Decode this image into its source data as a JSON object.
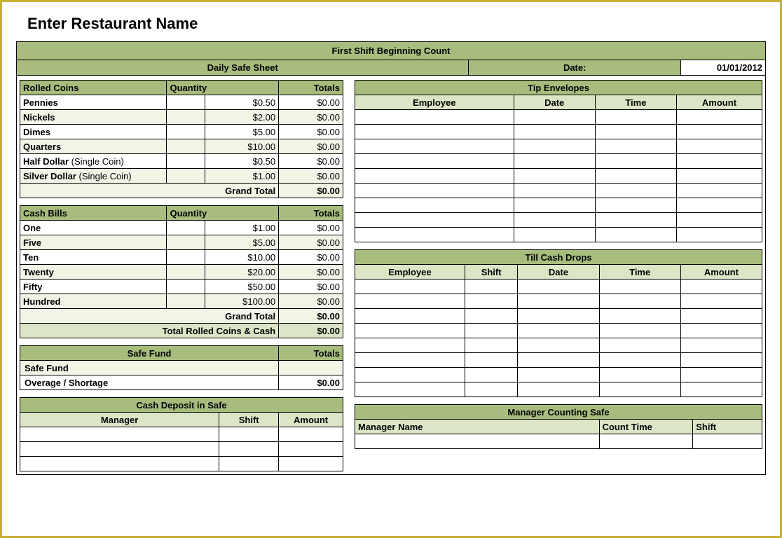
{
  "colors": {
    "header_dark": "#a8bd7d",
    "header_light": "#dce6c7",
    "row_alt": "#f0f5e6",
    "border_frame": "#c9b037",
    "border_cell": "#000000",
    "background": "#ffffff"
  },
  "typography": {
    "title_fontsize": 22,
    "cell_fontsize": 13,
    "font_family": "Arial"
  },
  "title": "Enter Restaurant Name",
  "main_header": "First Shift Beginning Count",
  "subheader_left": "Daily Safe Sheet",
  "subheader_date_label": "Date:",
  "subheader_date_value": "01/01/2012",
  "rolled_coins": {
    "title": "Rolled Coins",
    "col_qty": "Quantity",
    "col_totals": "Totals",
    "rows": [
      {
        "label": "Pennies",
        "sub": "",
        "qty": "",
        "unit": "$0.50",
        "total": "$0.00"
      },
      {
        "label": "Nickels",
        "sub": "",
        "qty": "",
        "unit": "$2.00",
        "total": "$0.00"
      },
      {
        "label": "Dimes",
        "sub": "",
        "qty": "",
        "unit": "$5.00",
        "total": "$0.00"
      },
      {
        "label": "Quarters",
        "sub": "",
        "qty": "",
        "unit": "$10.00",
        "total": "$0.00"
      },
      {
        "label": "Half Dollar",
        "sub": " (Single Coin)",
        "qty": "",
        "unit": "$0.50",
        "total": "$0.00"
      },
      {
        "label": "Silver Dollar",
        "sub": " (Single Coin)",
        "qty": "",
        "unit": "$1.00",
        "total": "$0.00"
      }
    ],
    "grand_total_label": "Grand Total",
    "grand_total_value": "$0.00"
  },
  "cash_bills": {
    "title": "Cash Bills",
    "col_qty": "Quantity",
    "col_totals": "Totals",
    "rows": [
      {
        "label": "One",
        "qty": "",
        "unit": "$1.00",
        "total": "$0.00"
      },
      {
        "label": "Five",
        "qty": "",
        "unit": "$5.00",
        "total": "$0.00"
      },
      {
        "label": "Ten",
        "qty": "",
        "unit": "$10.00",
        "total": "$0.00"
      },
      {
        "label": "Twenty",
        "qty": "",
        "unit": "$20.00",
        "total": "$0.00"
      },
      {
        "label": "Fifty",
        "qty": "",
        "unit": "$50.00",
        "total": "$0.00"
      },
      {
        "label": "Hundred",
        "qty": "",
        "unit": "$100.00",
        "total": "$0.00"
      }
    ],
    "grand_total_label": "Grand Total",
    "grand_total_value": "$0.00",
    "combined_label": "Total Rolled Coins & Cash",
    "combined_value": "$0.00"
  },
  "safe_fund": {
    "title": "Safe Fund",
    "col_totals": "Totals",
    "rows": [
      {
        "label": "Safe Fund",
        "total": ""
      },
      {
        "label": "Overage / Shortage",
        "total": "$0.00"
      }
    ]
  },
  "cash_deposit": {
    "title": "Cash Deposit in Safe",
    "cols": [
      "Manager",
      "Shift",
      "Amount"
    ],
    "blank_rows": 3
  },
  "tip_envelopes": {
    "title": "Tip Envelopes",
    "cols": [
      "Employee",
      "Date",
      "Time",
      "Amount"
    ],
    "blank_rows": 9
  },
  "till_drops": {
    "title": "Till Cash Drops",
    "cols": [
      "Employee",
      "Shift",
      "Date",
      "Time",
      "Amount"
    ],
    "blank_rows": 8
  },
  "mgr_counting": {
    "title": "Manager Counting Safe",
    "cols": [
      "Manager Name",
      "Count Time",
      "Shift"
    ],
    "blank_rows": 1
  }
}
